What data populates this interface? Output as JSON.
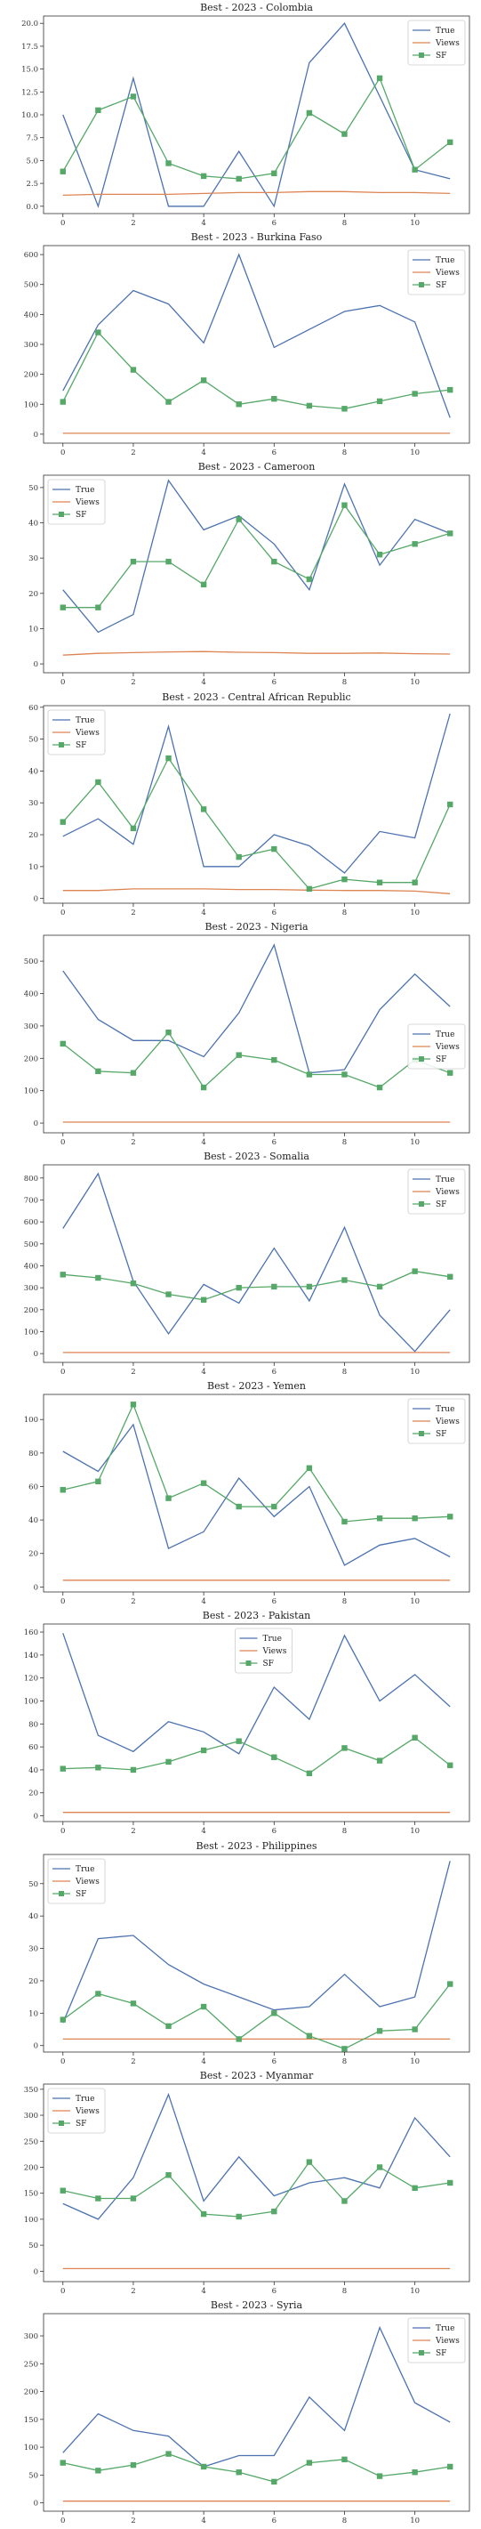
{
  "colors": {
    "true": "#4c72b0",
    "views": "#dd8452",
    "sf": "#55a868",
    "frame": "#333333"
  },
  "chart_data": [
    {
      "type": "line",
      "title": "Best - 2023 - Colombia",
      "x": [
        0,
        1,
        2,
        3,
        4,
        5,
        6,
        7,
        8,
        9,
        10,
        11
      ],
      "xticks": [
        0,
        2,
        4,
        6,
        8,
        10
      ],
      "ylim": [
        -0.8,
        20.8
      ],
      "yticks": [
        0,
        2.5,
        5,
        7.5,
        10,
        12.5,
        15,
        17.5,
        20
      ],
      "ytick_labels": [
        "0.0",
        "2.5",
        "5.0",
        "7.5",
        "10.0",
        "12.5",
        "15.0",
        "17.5",
        "20.0"
      ],
      "legend": "top-right",
      "series": [
        {
          "name": "True",
          "values": [
            10,
            0,
            14,
            0,
            0,
            6,
            0,
            15.7,
            20,
            12,
            4,
            3
          ]
        },
        {
          "name": "Views",
          "values": [
            1.2,
            1.3,
            1.3,
            1.3,
            1.4,
            1.5,
            1.5,
            1.6,
            1.6,
            1.5,
            1.5,
            1.4
          ]
        },
        {
          "name": "SF",
          "values": [
            3.8,
            10.5,
            12,
            4.7,
            3.3,
            3,
            3.6,
            10.2,
            7.9,
            14,
            4,
            7
          ]
        }
      ]
    },
    {
      "type": "line",
      "title": "Best - 2023 - Burkina Faso",
      "x": [
        0,
        1,
        2,
        3,
        4,
        5,
        6,
        7,
        8,
        9,
        10,
        11
      ],
      "xticks": [
        0,
        2,
        4,
        6,
        8,
        10
      ],
      "ylim": [
        -30,
        630
      ],
      "yticks": [
        0,
        100,
        200,
        300,
        400,
        500,
        600
      ],
      "ytick_labels": [
        "0",
        "100",
        "200",
        "300",
        "400",
        "500",
        "600"
      ],
      "legend": "top-right",
      "series": [
        {
          "name": "True",
          "values": [
            145,
            365,
            480,
            435,
            305,
            600,
            290,
            350,
            410,
            430,
            375,
            55
          ]
        },
        {
          "name": "Views",
          "values": [
            3,
            3,
            3,
            3,
            3,
            3,
            3,
            3,
            3,
            3,
            3,
            3
          ]
        },
        {
          "name": "SF",
          "values": [
            108,
            340,
            215,
            108,
            180,
            100,
            118,
            95,
            85,
            110,
            135,
            148
          ]
        }
      ]
    },
    {
      "type": "line",
      "title": "Best - 2023 - Cameroon",
      "x": [
        0,
        1,
        2,
        3,
        4,
        5,
        6,
        7,
        8,
        9,
        10,
        11
      ],
      "xticks": [
        0,
        2,
        4,
        6,
        8,
        10
      ],
      "ylim": [
        -2.5,
        53.5
      ],
      "yticks": [
        0,
        10,
        20,
        30,
        40,
        50
      ],
      "ytick_labels": [
        "0",
        "10",
        "20",
        "30",
        "40",
        "50"
      ],
      "legend": "top-left",
      "series": [
        {
          "name": "True",
          "values": [
            21,
            9,
            14,
            52,
            38,
            42,
            34,
            21,
            51,
            28,
            41,
            37
          ]
        },
        {
          "name": "Views",
          "values": [
            2.5,
            3,
            3.2,
            3.4,
            3.5,
            3.3,
            3.2,
            3,
            3,
            3.1,
            2.9,
            2.8
          ]
        },
        {
          "name": "SF",
          "values": [
            16,
            16,
            29,
            29,
            22.5,
            41,
            29,
            24,
            45,
            31,
            34,
            37
          ]
        }
      ]
    },
    {
      "type": "line",
      "title": "Best - 2023 - Central African Republic",
      "x": [
        0,
        1,
        2,
        3,
        4,
        5,
        6,
        7,
        8,
        9,
        10,
        11
      ],
      "xticks": [
        0,
        2,
        4,
        6,
        8,
        10
      ],
      "ylim": [
        -1.5,
        60.5
      ],
      "yticks": [
        0,
        10,
        20,
        30,
        40,
        50,
        60
      ],
      "ytick_labels": [
        "0",
        "10",
        "20",
        "30",
        "40",
        "50",
        "60"
      ],
      "legend": "top-left",
      "series": [
        {
          "name": "True",
          "values": [
            19.5,
            25,
            17,
            54,
            10,
            10,
            20,
            16.5,
            8,
            21,
            19,
            58
          ]
        },
        {
          "name": "Views",
          "values": [
            2.5,
            2.5,
            3,
            3,
            3,
            2.8,
            2.8,
            2.6,
            2.5,
            2.5,
            2.3,
            1.5
          ]
        },
        {
          "name": "SF",
          "values": [
            24,
            36.5,
            22,
            44,
            28,
            13,
            15.5,
            3,
            6,
            5,
            5,
            29.5
          ]
        }
      ]
    },
    {
      "type": "line",
      "title": "Best - 2023 - Nigeria",
      "x": [
        0,
        1,
        2,
        3,
        4,
        5,
        6,
        7,
        8,
        9,
        10,
        11
      ],
      "xticks": [
        0,
        2,
        4,
        6,
        8,
        10
      ],
      "ylim": [
        -30,
        580
      ],
      "yticks": [
        0,
        100,
        200,
        300,
        400,
        500
      ],
      "ytick_labels": [
        "0",
        "100",
        "200",
        "300",
        "400",
        "500"
      ],
      "legend": "center-right",
      "series": [
        {
          "name": "True",
          "values": [
            470,
            320,
            255,
            255,
            205,
            340,
            550,
            155,
            165,
            350,
            460,
            360
          ]
        },
        {
          "name": "Views",
          "values": [
            3,
            3,
            3,
            3,
            3,
            3,
            3,
            3,
            3,
            3,
            3,
            3
          ]
        },
        {
          "name": "SF",
          "values": [
            245,
            160,
            155,
            280,
            110,
            210,
            195,
            150,
            150,
            110,
            195,
            155
          ]
        }
      ]
    },
    {
      "type": "line",
      "title": "Best - 2023 - Somalia",
      "x": [
        0,
        1,
        2,
        3,
        4,
        5,
        6,
        7,
        8,
        9,
        10,
        11
      ],
      "xticks": [
        0,
        2,
        4,
        6,
        8,
        10
      ],
      "ylim": [
        -40,
        860
      ],
      "yticks": [
        0,
        100,
        200,
        300,
        400,
        500,
        600,
        700,
        800
      ],
      "ytick_labels": [
        "0",
        "100",
        "200",
        "300",
        "400",
        "500",
        "600",
        "700",
        "800"
      ],
      "legend": "top-right",
      "series": [
        {
          "name": "True",
          "values": [
            570,
            820,
            330,
            90,
            315,
            230,
            480,
            240,
            575,
            175,
            10,
            200
          ]
        },
        {
          "name": "Views",
          "values": [
            5,
            5,
            5,
            5,
            5,
            5,
            5,
            5,
            5,
            5,
            5,
            5
          ]
        },
        {
          "name": "SF",
          "values": [
            360,
            345,
            320,
            270,
            245,
            300,
            305,
            305,
            335,
            305,
            375,
            350
          ]
        }
      ]
    },
    {
      "type": "line",
      "title": "Best - 2023 - Yemen",
      "x": [
        0,
        1,
        2,
        3,
        4,
        5,
        6,
        7,
        8,
        9,
        10,
        11
      ],
      "xticks": [
        0,
        2,
        4,
        6,
        8,
        10
      ],
      "ylim": [
        -3,
        115
      ],
      "yticks": [
        0,
        20,
        40,
        60,
        80,
        100
      ],
      "ytick_labels": [
        "0",
        "20",
        "40",
        "60",
        "80",
        "100"
      ],
      "legend": "top-right",
      "series": [
        {
          "name": "True",
          "values": [
            81,
            69,
            97,
            23,
            33,
            65,
            42,
            60,
            13,
            25,
            29,
            18
          ]
        },
        {
          "name": "Views",
          "values": [
            4,
            4,
            4,
            4,
            4,
            4,
            4,
            4,
            4,
            4,
            4,
            4
          ]
        },
        {
          "name": "SF",
          "values": [
            58,
            63,
            109,
            53,
            62,
            48,
            48,
            71,
            39,
            41,
            41,
            42
          ]
        }
      ]
    },
    {
      "type": "line",
      "title": "Best - 2023 - Pakistan",
      "x": [
        0,
        1,
        2,
        3,
        4,
        5,
        6,
        7,
        8,
        9,
        10,
        11
      ],
      "xticks": [
        0,
        2,
        4,
        6,
        8,
        10
      ],
      "ylim": [
        -5,
        167
      ],
      "yticks": [
        0,
        20,
        40,
        60,
        80,
        100,
        120,
        140,
        160
      ],
      "ytick_labels": [
        "0",
        "20",
        "40",
        "60",
        "80",
        "100",
        "120",
        "140",
        "160"
      ],
      "legend": "top-center",
      "series": [
        {
          "name": "True",
          "values": [
            159,
            70,
            56,
            82,
            73,
            54,
            112,
            84,
            157,
            100,
            123,
            95
          ]
        },
        {
          "name": "Views",
          "values": [
            3,
            3,
            3,
            3,
            3,
            3,
            3,
            3,
            3,
            3,
            3,
            3
          ]
        },
        {
          "name": "SF",
          "values": [
            41,
            42,
            40,
            47,
            57,
            65,
            51,
            37,
            59,
            48,
            68,
            44
          ]
        }
      ]
    },
    {
      "type": "line",
      "title": "Best - 2023 - Philippines",
      "x": [
        0,
        1,
        2,
        3,
        4,
        5,
        6,
        7,
        8,
        9,
        10,
        11
      ],
      "xticks": [
        0,
        2,
        4,
        6,
        8,
        10
      ],
      "ylim": [
        -2,
        59
      ],
      "yticks": [
        0,
        10,
        20,
        30,
        40,
        50
      ],
      "ytick_labels": [
        "0",
        "10",
        "20",
        "30",
        "40",
        "50"
      ],
      "legend": "top-left",
      "series": [
        {
          "name": "True",
          "values": [
            7,
            33,
            34,
            25,
            19,
            15,
            11,
            12,
            22,
            12,
            15,
            57
          ]
        },
        {
          "name": "Views",
          "values": [
            2,
            2,
            2,
            2,
            2,
            2,
            2,
            2,
            2,
            2,
            2,
            2
          ]
        },
        {
          "name": "SF",
          "values": [
            8,
            16,
            13,
            6,
            12,
            2,
            10,
            3,
            -1,
            4.5,
            5,
            19
          ]
        }
      ]
    },
    {
      "type": "line",
      "title": "Best - 2023 - Myanmar",
      "x": [
        0,
        1,
        2,
        3,
        4,
        5,
        6,
        7,
        8,
        9,
        10,
        11
      ],
      "xticks": [
        0,
        2,
        4,
        6,
        8,
        10
      ],
      "ylim": [
        -20,
        360
      ],
      "yticks": [
        0,
        50,
        100,
        150,
        200,
        250,
        300,
        350
      ],
      "ytick_labels": [
        "0",
        "50",
        "100",
        "150",
        "200",
        "250",
        "300",
        "350"
      ],
      "legend": "top-left",
      "series": [
        {
          "name": "True",
          "values": [
            130,
            100,
            180,
            340,
            135,
            220,
            145,
            170,
            180,
            160,
            295,
            220
          ]
        },
        {
          "name": "Views",
          "values": [
            5,
            5,
            5,
            5,
            5,
            5,
            5,
            5,
            5,
            5,
            5,
            5
          ]
        },
        {
          "name": "SF",
          "values": [
            155,
            140,
            140,
            185,
            110,
            105,
            115,
            210,
            135,
            200,
            160,
            170
          ]
        }
      ]
    },
    {
      "type": "line",
      "title": "Best - 2023 - Syria",
      "x": [
        0,
        1,
        2,
        3,
        4,
        5,
        6,
        7,
        8,
        9,
        10,
        11
      ],
      "xticks": [
        0,
        2,
        4,
        6,
        8,
        10
      ],
      "ylim": [
        -15,
        340
      ],
      "yticks": [
        0,
        50,
        100,
        150,
        200,
        250,
        300
      ],
      "ytick_labels": [
        "0",
        "50",
        "100",
        "150",
        "200",
        "250",
        "300"
      ],
      "legend": "top-right",
      "series": [
        {
          "name": "True",
          "values": [
            90,
            160,
            130,
            120,
            65,
            85,
            85,
            190,
            130,
            315,
            180,
            145
          ]
        },
        {
          "name": "Views",
          "values": [
            3,
            3,
            3,
            3,
            3,
            3,
            3,
            3,
            3,
            3,
            3,
            3
          ]
        },
        {
          "name": "SF",
          "values": [
            72,
            58,
            68,
            88,
            65,
            55,
            38,
            72,
            78,
            48,
            55,
            65
          ]
        }
      ]
    }
  ]
}
